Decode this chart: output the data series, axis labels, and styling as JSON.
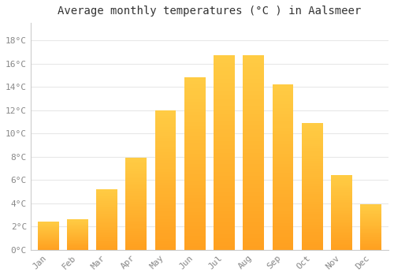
{
  "title": "Average monthly temperatures (°C ) in Aalsmeer",
  "months": [
    "Jan",
    "Feb",
    "Mar",
    "Apr",
    "May",
    "Jun",
    "Jul",
    "Aug",
    "Sep",
    "Oct",
    "Nov",
    "Dec"
  ],
  "values": [
    2.4,
    2.6,
    5.2,
    7.9,
    12.0,
    14.8,
    16.7,
    16.7,
    14.2,
    10.9,
    6.4,
    3.9
  ],
  "bar_color_light": "#FFCC44",
  "bar_color_dark": "#FFA020",
  "background_color": "#FFFFFF",
  "grid_color": "#E8E8E8",
  "yticks": [
    0,
    2,
    4,
    6,
    8,
    10,
    12,
    14,
    16,
    18
  ],
  "ylim": [
    0,
    19.5
  ],
  "title_fontsize": 10,
  "tick_fontsize": 8,
  "font_family": "monospace",
  "tick_color": "#888888",
  "spine_color": "#CCCCCC"
}
